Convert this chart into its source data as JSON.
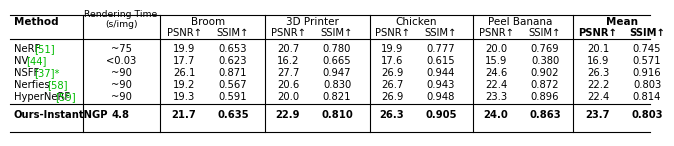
{
  "methods": [
    "NeRF",
    "NV",
    "NSFF",
    "Nerfies",
    "HyperNeRF"
  ],
  "method_bases": [
    "NeRF ",
    "NV ",
    "NSFF ",
    "Nerfies ",
    "HyperNeRF "
  ],
  "method_refs": [
    "[51]",
    "[44]",
    "[37]*",
    "[58]",
    "[59]"
  ],
  "render_times": [
    "~75",
    "<0.03",
    "~90",
    "~90",
    "~90"
  ],
  "ours_method": "Ours-InstantNGP",
  "ours_render_time": "4.8",
  "data": [
    [
      19.9,
      0.653,
      20.7,
      0.78,
      19.9,
      0.777,
      20.0,
      0.769,
      20.1,
      0.745
    ],
    [
      17.7,
      0.623,
      16.2,
      0.665,
      17.6,
      0.615,
      15.9,
      0.38,
      16.9,
      0.571
    ],
    [
      26.1,
      0.871,
      27.7,
      0.947,
      26.9,
      0.944,
      24.6,
      0.902,
      26.3,
      0.916
    ],
    [
      19.2,
      0.567,
      20.6,
      0.83,
      26.7,
      0.943,
      22.4,
      0.872,
      22.2,
      0.803
    ],
    [
      19.3,
      0.591,
      20.0,
      0.821,
      26.9,
      0.948,
      23.3,
      0.896,
      22.4,
      0.814
    ]
  ],
  "ours_data": [
    21.7,
    0.635,
    22.9,
    0.81,
    26.3,
    0.905,
    24.0,
    0.863,
    23.7,
    0.803
  ],
  "bg_color": "#ffffff",
  "ref_color": "#00bb00",
  "font_size": 7.2,
  "header_font_size": 7.5
}
